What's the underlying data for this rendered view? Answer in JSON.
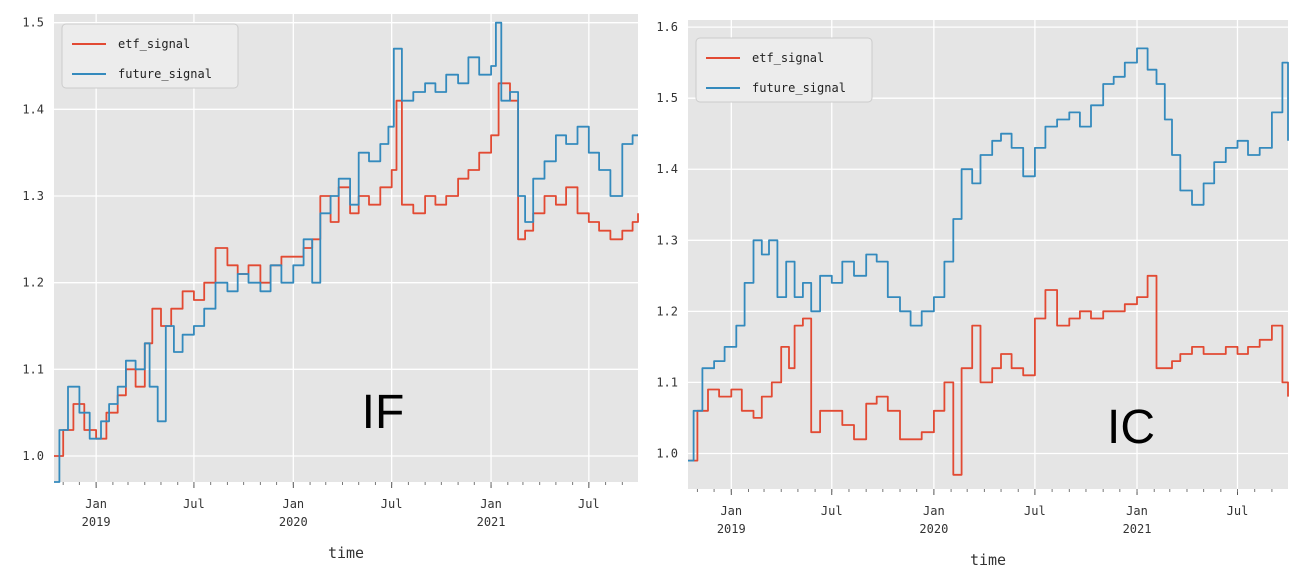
{
  "colors": {
    "etf_signal": "#e24a33",
    "future_signal": "#348abd",
    "plot_bg": "#e5e5e5",
    "grid": "#ffffff"
  },
  "chart_data": [
    {
      "type": "line",
      "panel_label": "IF",
      "xlabel": "time",
      "ylim": [
        0.97,
        1.51
      ],
      "xlim": [
        "2018-10-15",
        "2021-09-30"
      ],
      "yticks": [
        "1.0",
        "1.1",
        "1.2",
        "1.3",
        "1.4",
        "1.5"
      ],
      "xticks": [
        {
          "date": "2019-01-01",
          "label": "Jan",
          "sub": "2019"
        },
        {
          "date": "2019-07-01",
          "label": "Jul",
          "sub": ""
        },
        {
          "date": "2020-01-01",
          "label": "Jan",
          "sub": "2020"
        },
        {
          "date": "2020-07-01",
          "label": "Jul",
          "sub": ""
        },
        {
          "date": "2021-01-01",
          "label": "Jan",
          "sub": "2021"
        },
        {
          "date": "2021-07-01",
          "label": "Jul",
          "sub": ""
        }
      ],
      "legend": "upper-left",
      "grid": true,
      "series": [
        {
          "name": "etf_signal",
          "x": [
            "2018-10-15",
            "2018-11-01",
            "2018-11-20",
            "2018-12-10",
            "2019-01-01",
            "2019-01-20",
            "2019-02-10",
            "2019-02-25",
            "2019-03-15",
            "2019-04-01",
            "2019-04-15",
            "2019-05-01",
            "2019-05-20",
            "2019-06-10",
            "2019-07-01",
            "2019-07-20",
            "2019-08-10",
            "2019-09-01",
            "2019-09-20",
            "2019-10-10",
            "2019-11-01",
            "2019-11-20",
            "2019-12-10",
            "2020-01-01",
            "2020-01-20",
            "2020-02-05",
            "2020-02-20",
            "2020-03-10",
            "2020-03-25",
            "2020-04-15",
            "2020-05-01",
            "2020-05-20",
            "2020-06-10",
            "2020-07-01",
            "2020-07-10",
            "2020-07-20",
            "2020-08-10",
            "2020-09-01",
            "2020-09-20",
            "2020-10-10",
            "2020-11-01",
            "2020-11-20",
            "2020-12-10",
            "2021-01-01",
            "2021-01-15",
            "2021-02-05",
            "2021-02-20",
            "2021-03-05",
            "2021-03-20",
            "2021-04-10",
            "2021-05-01",
            "2021-05-20",
            "2021-06-10",
            "2021-07-01",
            "2021-07-20",
            "2021-08-10",
            "2021-09-01",
            "2021-09-20",
            "2021-09-30"
          ],
          "y": [
            1.0,
            1.03,
            1.06,
            1.03,
            1.02,
            1.05,
            1.07,
            1.1,
            1.08,
            1.13,
            1.17,
            1.15,
            1.17,
            1.19,
            1.18,
            1.2,
            1.24,
            1.22,
            1.21,
            1.22,
            1.2,
            1.22,
            1.23,
            1.23,
            1.24,
            1.25,
            1.3,
            1.27,
            1.31,
            1.28,
            1.3,
            1.29,
            1.31,
            1.33,
            1.41,
            1.29,
            1.28,
            1.3,
            1.29,
            1.3,
            1.32,
            1.33,
            1.35,
            1.37,
            1.43,
            1.41,
            1.25,
            1.26,
            1.28,
            1.3,
            1.29,
            1.31,
            1.28,
            1.27,
            1.26,
            1.25,
            1.26,
            1.27,
            1.28
          ]
        },
        {
          "name": "future_signal",
          "x": [
            "2018-10-15",
            "2018-10-25",
            "2018-11-10",
            "2018-12-01",
            "2018-12-20",
            "2019-01-10",
            "2019-01-25",
            "2019-02-10",
            "2019-02-25",
            "2019-03-15",
            "2019-04-01",
            "2019-04-10",
            "2019-04-25",
            "2019-05-10",
            "2019-05-25",
            "2019-06-10",
            "2019-07-01",
            "2019-07-20",
            "2019-08-10",
            "2019-09-01",
            "2019-09-20",
            "2019-10-10",
            "2019-11-01",
            "2019-11-20",
            "2019-12-10",
            "2020-01-01",
            "2020-01-20",
            "2020-02-05",
            "2020-02-20",
            "2020-03-10",
            "2020-03-25",
            "2020-04-15",
            "2020-05-01",
            "2020-05-20",
            "2020-06-10",
            "2020-06-25",
            "2020-07-05",
            "2020-07-20",
            "2020-08-10",
            "2020-09-01",
            "2020-09-20",
            "2020-10-10",
            "2020-11-01",
            "2020-11-20",
            "2020-12-10",
            "2021-01-01",
            "2021-01-10",
            "2021-01-20",
            "2021-02-05",
            "2021-02-20",
            "2021-03-05",
            "2021-03-20",
            "2021-04-10",
            "2021-05-01",
            "2021-05-20",
            "2021-06-10",
            "2021-07-01",
            "2021-07-20",
            "2021-08-10",
            "2021-09-01",
            "2021-09-20",
            "2021-09-30"
          ],
          "y": [
            0.97,
            1.03,
            1.08,
            1.05,
            1.02,
            1.04,
            1.06,
            1.08,
            1.11,
            1.1,
            1.13,
            1.08,
            1.04,
            1.15,
            1.12,
            1.14,
            1.15,
            1.17,
            1.2,
            1.19,
            1.21,
            1.2,
            1.19,
            1.22,
            1.2,
            1.22,
            1.25,
            1.2,
            1.28,
            1.3,
            1.32,
            1.29,
            1.35,
            1.34,
            1.36,
            1.38,
            1.47,
            1.41,
            1.42,
            1.43,
            1.42,
            1.44,
            1.43,
            1.46,
            1.44,
            1.45,
            1.5,
            1.41,
            1.42,
            1.3,
            1.27,
            1.32,
            1.34,
            1.37,
            1.36,
            1.38,
            1.35,
            1.33,
            1.3,
            1.36,
            1.37,
            1.37
          ]
        }
      ]
    },
    {
      "type": "line",
      "panel_label": "IC",
      "xlabel": "time",
      "ylim": [
        0.95,
        1.61
      ],
      "xlim": [
        "2018-10-15",
        "2021-09-30"
      ],
      "yticks": [
        "1.0",
        "1.1",
        "1.2",
        "1.3",
        "1.4",
        "1.5",
        "1.6"
      ],
      "xticks": [
        {
          "date": "2019-01-01",
          "label": "Jan",
          "sub": "2019"
        },
        {
          "date": "2019-07-01",
          "label": "Jul",
          "sub": ""
        },
        {
          "date": "2020-01-01",
          "label": "Jan",
          "sub": "2020"
        },
        {
          "date": "2020-07-01",
          "label": "Jul",
          "sub": ""
        },
        {
          "date": "2021-01-01",
          "label": "Jan",
          "sub": "2021"
        },
        {
          "date": "2021-07-01",
          "label": "Jul",
          "sub": ""
        }
      ],
      "legend": "upper-left",
      "grid": true,
      "series": [
        {
          "name": "etf_signal",
          "x": [
            "2018-10-15",
            "2018-11-01",
            "2018-11-20",
            "2018-12-10",
            "2019-01-01",
            "2019-01-20",
            "2019-02-10",
            "2019-02-25",
            "2019-03-15",
            "2019-04-01",
            "2019-04-15",
            "2019-04-25",
            "2019-05-10",
            "2019-05-25",
            "2019-06-10",
            "2019-07-01",
            "2019-07-20",
            "2019-08-10",
            "2019-09-01",
            "2019-09-20",
            "2019-10-10",
            "2019-11-01",
            "2019-11-20",
            "2019-12-10",
            "2020-01-01",
            "2020-01-20",
            "2020-02-05",
            "2020-02-20",
            "2020-03-10",
            "2020-03-25",
            "2020-04-15",
            "2020-05-01",
            "2020-05-20",
            "2020-06-10",
            "2020-07-01",
            "2020-07-20",
            "2020-08-10",
            "2020-09-01",
            "2020-09-20",
            "2020-10-10",
            "2020-11-01",
            "2020-11-20",
            "2020-12-10",
            "2021-01-01",
            "2021-01-20",
            "2021-02-05",
            "2021-02-20",
            "2021-03-05",
            "2021-03-20",
            "2021-04-10",
            "2021-05-01",
            "2021-05-20",
            "2021-06-10",
            "2021-07-01",
            "2021-07-20",
            "2021-08-10",
            "2021-09-01",
            "2021-09-20",
            "2021-09-30"
          ],
          "y": [
            0.99,
            1.06,
            1.09,
            1.08,
            1.09,
            1.06,
            1.05,
            1.08,
            1.1,
            1.15,
            1.12,
            1.18,
            1.19,
            1.03,
            1.06,
            1.06,
            1.04,
            1.02,
            1.07,
            1.08,
            1.06,
            1.02,
            1.02,
            1.03,
            1.06,
            1.1,
            0.97,
            1.12,
            1.18,
            1.1,
            1.12,
            1.14,
            1.12,
            1.11,
            1.19,
            1.23,
            1.18,
            1.19,
            1.2,
            1.19,
            1.2,
            1.2,
            1.21,
            1.22,
            1.25,
            1.12,
            1.12,
            1.13,
            1.14,
            1.15,
            1.14,
            1.14,
            1.15,
            1.14,
            1.15,
            1.16,
            1.18,
            1.1,
            1.08
          ]
        },
        {
          "name": "future_signal",
          "x": [
            "2018-10-15",
            "2018-10-25",
            "2018-11-10",
            "2018-12-01",
            "2018-12-20",
            "2019-01-10",
            "2019-01-25",
            "2019-02-10",
            "2019-02-25",
            "2019-03-10",
            "2019-03-25",
            "2019-04-10",
            "2019-04-25",
            "2019-05-10",
            "2019-05-25",
            "2019-06-10",
            "2019-07-01",
            "2019-07-20",
            "2019-08-10",
            "2019-09-01",
            "2019-09-20",
            "2019-10-10",
            "2019-11-01",
            "2019-11-20",
            "2019-12-10",
            "2020-01-01",
            "2020-01-20",
            "2020-02-05",
            "2020-02-20",
            "2020-03-10",
            "2020-03-25",
            "2020-04-15",
            "2020-05-01",
            "2020-05-20",
            "2020-06-10",
            "2020-07-01",
            "2020-07-20",
            "2020-08-10",
            "2020-09-01",
            "2020-09-20",
            "2020-10-10",
            "2020-11-01",
            "2020-11-20",
            "2020-12-10",
            "2021-01-01",
            "2021-01-20",
            "2021-02-05",
            "2021-02-20",
            "2021-03-05",
            "2021-03-20",
            "2021-04-10",
            "2021-05-01",
            "2021-05-20",
            "2021-06-10",
            "2021-07-01",
            "2021-07-20",
            "2021-08-10",
            "2021-09-01",
            "2021-09-20",
            "2021-09-30"
          ],
          "y": [
            0.99,
            1.06,
            1.12,
            1.13,
            1.15,
            1.18,
            1.24,
            1.3,
            1.28,
            1.3,
            1.22,
            1.27,
            1.22,
            1.24,
            1.2,
            1.25,
            1.24,
            1.27,
            1.25,
            1.28,
            1.27,
            1.22,
            1.2,
            1.18,
            1.2,
            1.22,
            1.27,
            1.33,
            1.4,
            1.38,
            1.42,
            1.44,
            1.45,
            1.43,
            1.39,
            1.43,
            1.46,
            1.47,
            1.48,
            1.46,
            1.49,
            1.52,
            1.53,
            1.55,
            1.57,
            1.54,
            1.52,
            1.47,
            1.42,
            1.37,
            1.35,
            1.38,
            1.41,
            1.43,
            1.44,
            1.42,
            1.43,
            1.48,
            1.55,
            1.44
          ]
        }
      ]
    }
  ]
}
